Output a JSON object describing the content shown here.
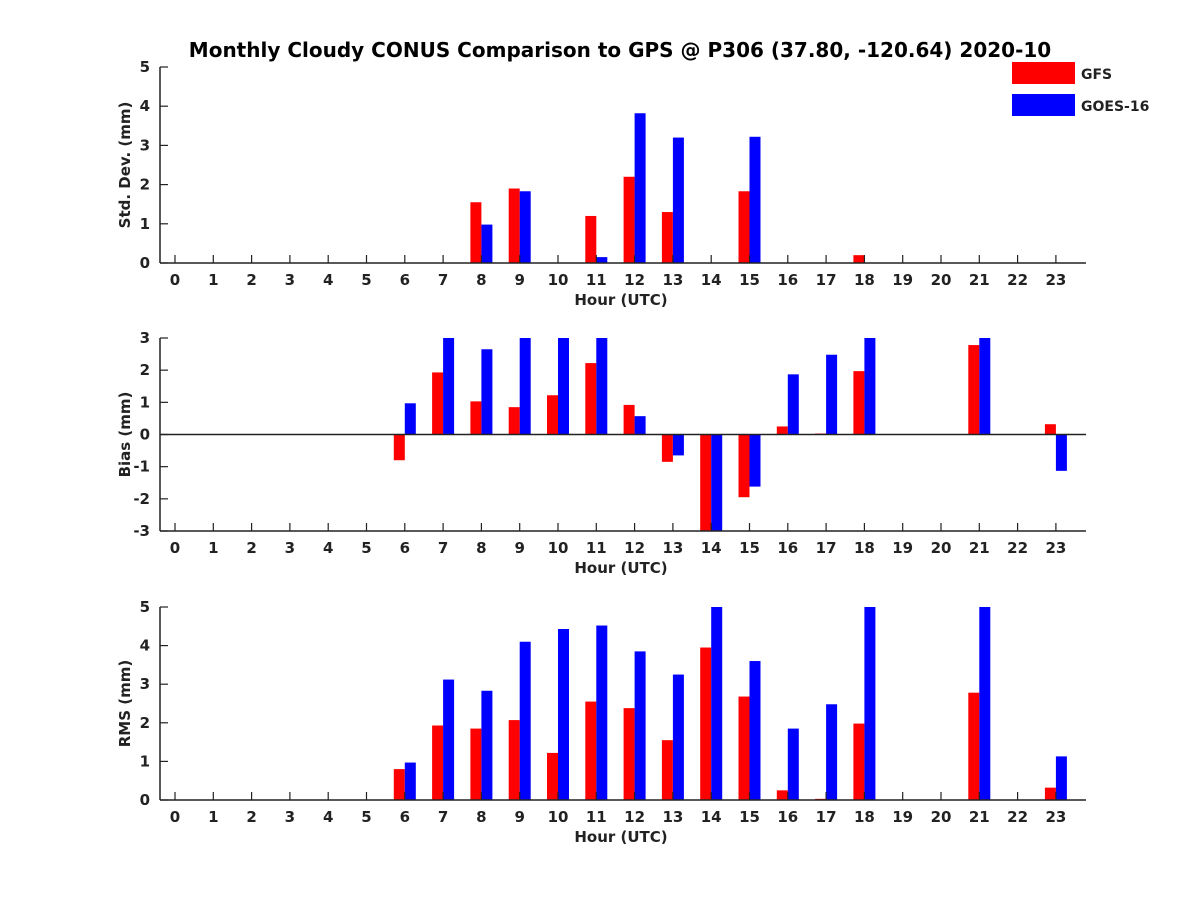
{
  "title": "Monthly Cloudy CONUS Comparison to GPS @ P306 (37.80, -120.64) 2020-10",
  "legend": {
    "placement": "top-right",
    "items": [
      {
        "label": "GFS",
        "color": "#ff0000"
      },
      {
        "label": "GOES-16",
        "color": "#0000ff"
      }
    ]
  },
  "chart_data": [
    {
      "type": "bar",
      "xlabel": "Hour (UTC)",
      "ylabel": "Std. Dev. (mm)",
      "ylim": [
        0,
        5
      ],
      "yticks": [
        0,
        1,
        2,
        3,
        4,
        5
      ],
      "categories": [
        "0",
        "1",
        "2",
        "3",
        "4",
        "5",
        "6",
        "7",
        "8",
        "9",
        "10",
        "11",
        "12",
        "13",
        "14",
        "15",
        "16",
        "17",
        "18",
        "19",
        "20",
        "21",
        "22",
        "23"
      ],
      "series": [
        {
          "name": "GFS",
          "color": "#ff0000",
          "values": [
            null,
            null,
            null,
            null,
            null,
            null,
            null,
            null,
            1.55,
            1.9,
            null,
            1.2,
            2.2,
            1.3,
            null,
            1.83,
            null,
            null,
            0.2,
            null,
            null,
            null,
            null,
            null
          ]
        },
        {
          "name": "GOES-16",
          "color": "#0000ff",
          "values": [
            null,
            null,
            null,
            null,
            null,
            null,
            null,
            null,
            0.98,
            1.83,
            null,
            0.15,
            3.82,
            3.2,
            null,
            3.22,
            null,
            null,
            null,
            null,
            null,
            null,
            null,
            null
          ]
        }
      ]
    },
    {
      "type": "bar",
      "xlabel": "Hour (UTC)",
      "ylabel": "Bias (mm)",
      "ylim": [
        -3,
        3
      ],
      "yticks": [
        -3,
        -2,
        -1,
        0,
        1,
        2,
        3
      ],
      "categories": [
        "0",
        "1",
        "2",
        "3",
        "4",
        "5",
        "6",
        "7",
        "8",
        "9",
        "10",
        "11",
        "12",
        "13",
        "14",
        "15",
        "16",
        "17",
        "18",
        "19",
        "20",
        "21",
        "22",
        "23"
      ],
      "series": [
        {
          "name": "GFS",
          "color": "#ff0000",
          "values": [
            null,
            null,
            null,
            null,
            null,
            null,
            -0.8,
            1.93,
            1.03,
            0.85,
            1.22,
            2.22,
            0.92,
            -0.85,
            -3.0,
            -1.95,
            0.25,
            0.03,
            1.97,
            null,
            null,
            2.78,
            null,
            0.32
          ]
        },
        {
          "name": "GOES-16",
          "color": "#0000ff",
          "values": [
            null,
            null,
            null,
            null,
            null,
            null,
            0.97,
            3.0,
            2.65,
            3.0,
            3.0,
            3.0,
            0.57,
            -0.65,
            -3.0,
            -1.62,
            1.87,
            2.48,
            3.0,
            null,
            null,
            3.0,
            null,
            -1.13
          ]
        }
      ]
    },
    {
      "type": "bar",
      "xlabel": "Hour (UTC)",
      "ylabel": "RMS (mm)",
      "ylim": [
        0,
        5
      ],
      "yticks": [
        0,
        1,
        2,
        3,
        4,
        5
      ],
      "categories": [
        "0",
        "1",
        "2",
        "3",
        "4",
        "5",
        "6",
        "7",
        "8",
        "9",
        "10",
        "11",
        "12",
        "13",
        "14",
        "15",
        "16",
        "17",
        "18",
        "19",
        "20",
        "21",
        "22",
        "23"
      ],
      "series": [
        {
          "name": "GFS",
          "color": "#ff0000",
          "values": [
            null,
            null,
            null,
            null,
            null,
            null,
            0.8,
            1.93,
            1.85,
            2.07,
            1.22,
            2.55,
            2.38,
            1.55,
            3.95,
            2.68,
            0.25,
            0.03,
            1.98,
            null,
            null,
            2.78,
            null,
            0.32
          ]
        },
        {
          "name": "GOES-16",
          "color": "#0000ff",
          "values": [
            null,
            null,
            null,
            null,
            null,
            null,
            0.97,
            3.12,
            2.83,
            4.1,
            4.43,
            4.52,
            3.85,
            3.25,
            5.0,
            3.6,
            1.85,
            2.48,
            5.0,
            null,
            null,
            5.0,
            null,
            1.13
          ]
        }
      ]
    }
  ]
}
